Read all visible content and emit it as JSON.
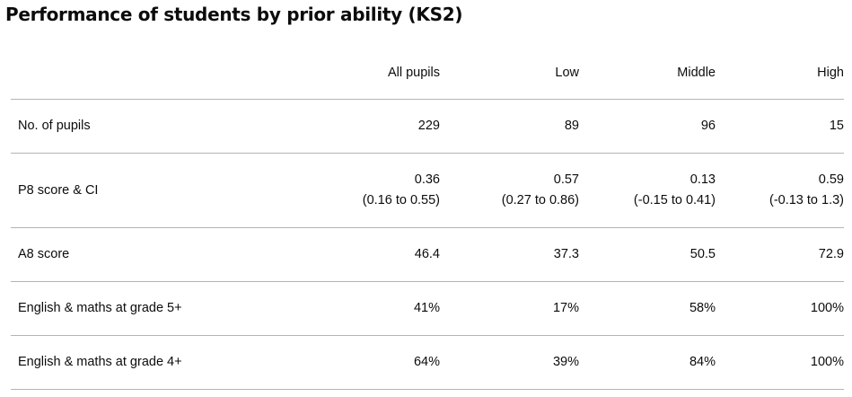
{
  "title": "Performance of students by prior ability (KS2)",
  "table": {
    "columns": [
      "",
      "All pupils",
      "Low",
      "Middle",
      "High"
    ],
    "rows": [
      {
        "label": "No. of pupils",
        "values": [
          "229",
          "89",
          "96",
          "15"
        ]
      },
      {
        "label": "P8 score & CI",
        "values": [
          "0.36",
          "0.57",
          "0.13",
          "0.59"
        ],
        "ci": [
          "(0.16 to 0.55)",
          "(0.27 to 0.86)",
          "(-0.15 to 0.41)",
          "(-0.13 to 1.3)"
        ]
      },
      {
        "label": "A8 score",
        "values": [
          "46.4",
          "37.3",
          "50.5",
          "72.9"
        ]
      },
      {
        "label": "English & maths at grade 5+",
        "values": [
          "41%",
          "17%",
          "58%",
          "100%"
        ]
      },
      {
        "label": "English & maths at grade 4+",
        "values": [
          "64%",
          "39%",
          "84%",
          "100%"
        ]
      }
    ]
  }
}
